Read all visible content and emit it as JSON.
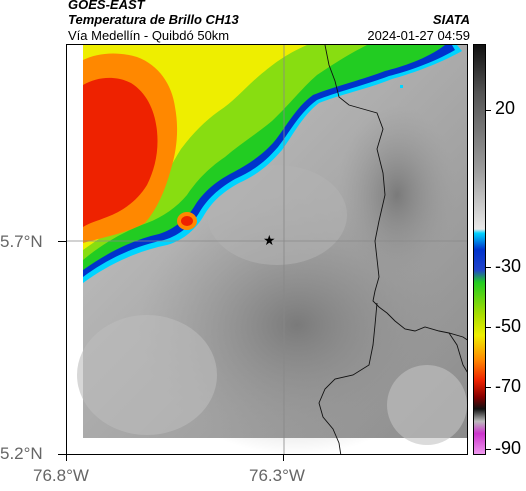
{
  "header": {
    "satellite": "GOES-EAST",
    "product": "Temperatura de Brillo CH13",
    "organization": "SIATA",
    "region": "Vía Medellín - Quibdó 50km",
    "datetime": "2024-01-27 04:59"
  },
  "map": {
    "lat_ticks": [
      "5.7°N",
      "5.2°N"
    ],
    "lon_ticks": [
      "76.8°W",
      "76.3°W"
    ],
    "marker": "star-marker",
    "gridlines": true,
    "borders": true
  },
  "colorbar": {
    "ticks": [
      "20",
      "-30",
      "-50",
      "-70",
      "-90"
    ],
    "colors": {
      "warm_gray": "#d6d6d6",
      "mid_gray": "#8a8a8a",
      "cyan": "#00d4ff",
      "blue": "#0033cc",
      "green": "#22cc22",
      "yellow": "#eeee00",
      "orange": "#ff8800",
      "red": "#ee2200",
      "black": "#111111",
      "magenta": "#cc33cc"
    }
  }
}
